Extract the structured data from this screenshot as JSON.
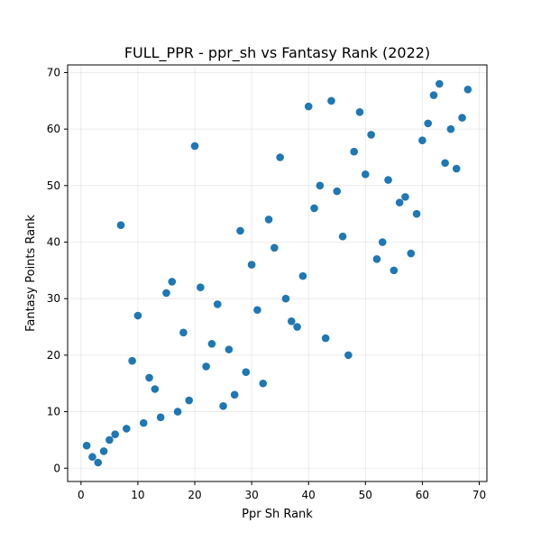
{
  "chart_data": {
    "type": "scatter",
    "title": "FULL_PPR - ppr_sh vs Fantasy Rank (2022)",
    "xlabel": "Ppr Sh Rank",
    "ylabel": "Fantasy Points Rank",
    "xlim": [
      -2.35,
      71.35
    ],
    "ylim": [
      -2.35,
      71.35
    ],
    "xticks": [
      0,
      10,
      20,
      30,
      40,
      50,
      60,
      70
    ],
    "yticks": [
      0,
      10,
      20,
      30,
      40,
      50,
      60,
      70
    ],
    "grid": true,
    "marker_color": "#1f77b4",
    "points": [
      {
        "x": 1,
        "y": 4
      },
      {
        "x": 2,
        "y": 2
      },
      {
        "x": 3,
        "y": 1
      },
      {
        "x": 4,
        "y": 3
      },
      {
        "x": 5,
        "y": 5
      },
      {
        "x": 6,
        "y": 6
      },
      {
        "x": 7,
        "y": 43
      },
      {
        "x": 8,
        "y": 7
      },
      {
        "x": 9,
        "y": 19
      },
      {
        "x": 10,
        "y": 27
      },
      {
        "x": 11,
        "y": 8
      },
      {
        "x": 12,
        "y": 16
      },
      {
        "x": 13,
        "y": 14
      },
      {
        "x": 14,
        "y": 9
      },
      {
        "x": 15,
        "y": 31
      },
      {
        "x": 16,
        "y": 33
      },
      {
        "x": 17,
        "y": 10
      },
      {
        "x": 18,
        "y": 24
      },
      {
        "x": 19,
        "y": 12
      },
      {
        "x": 20,
        "y": 57
      },
      {
        "x": 21,
        "y": 32
      },
      {
        "x": 22,
        "y": 18
      },
      {
        "x": 23,
        "y": 22
      },
      {
        "x": 24,
        "y": 29
      },
      {
        "x": 25,
        "y": 11
      },
      {
        "x": 26,
        "y": 21
      },
      {
        "x": 27,
        "y": 13
      },
      {
        "x": 28,
        "y": 42
      },
      {
        "x": 29,
        "y": 17
      },
      {
        "x": 30,
        "y": 36
      },
      {
        "x": 31,
        "y": 28
      },
      {
        "x": 32,
        "y": 15
      },
      {
        "x": 33,
        "y": 44
      },
      {
        "x": 34,
        "y": 39
      },
      {
        "x": 35,
        "y": 55
      },
      {
        "x": 36,
        "y": 30
      },
      {
        "x": 37,
        "y": 26
      },
      {
        "x": 38,
        "y": 25
      },
      {
        "x": 39,
        "y": 34
      },
      {
        "x": 40,
        "y": 64
      },
      {
        "x": 41,
        "y": 46
      },
      {
        "x": 42,
        "y": 50
      },
      {
        "x": 43,
        "y": 23
      },
      {
        "x": 44,
        "y": 65
      },
      {
        "x": 45,
        "y": 49
      },
      {
        "x": 46,
        "y": 41
      },
      {
        "x": 47,
        "y": 20
      },
      {
        "x": 48,
        "y": 56
      },
      {
        "x": 49,
        "y": 63
      },
      {
        "x": 50,
        "y": 52
      },
      {
        "x": 51,
        "y": 59
      },
      {
        "x": 52,
        "y": 37
      },
      {
        "x": 53,
        "y": 40
      },
      {
        "x": 54,
        "y": 51
      },
      {
        "x": 55,
        "y": 35
      },
      {
        "x": 56,
        "y": 47
      },
      {
        "x": 57,
        "y": 48
      },
      {
        "x": 58,
        "y": 38
      },
      {
        "x": 59,
        "y": 45
      },
      {
        "x": 60,
        "y": 58
      },
      {
        "x": 61,
        "y": 61
      },
      {
        "x": 62,
        "y": 66
      },
      {
        "x": 63,
        "y": 68
      },
      {
        "x": 64,
        "y": 54
      },
      {
        "x": 65,
        "y": 60
      },
      {
        "x": 66,
        "y": 53
      },
      {
        "x": 67,
        "y": 62
      },
      {
        "x": 68,
        "y": 67
      }
    ]
  }
}
